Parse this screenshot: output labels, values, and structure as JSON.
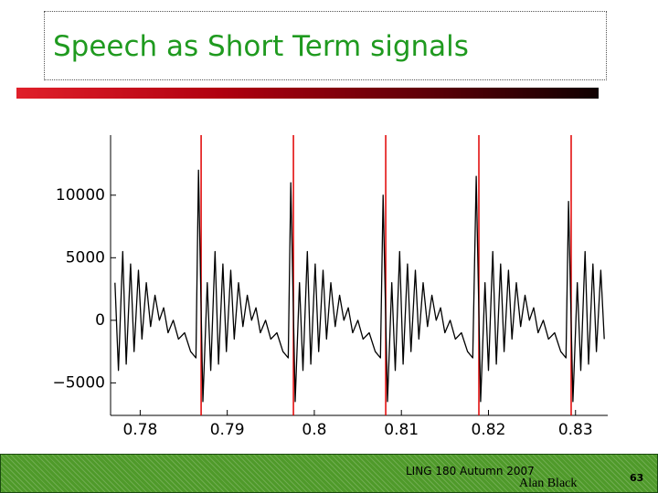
{
  "header": {
    "title": "Speech as Short Term signals"
  },
  "chart_data": {
    "type": "line",
    "xlim": [
      0.7766,
      0.8337
    ],
    "ylim": [
      -7600,
      14800
    ],
    "xticks": [
      0.78,
      0.79,
      0.8,
      0.81,
      0.82,
      0.83
    ],
    "yticks": [
      {
        "value": -5000,
        "label": "−5000"
      },
      0,
      5000,
      10000
    ],
    "grid": false,
    "pitch_marks": [
      0.787,
      0.7976,
      0.8082,
      0.8189,
      0.8295
    ],
    "pitch_mark_color": "#e00000",
    "x": [
      0.7771,
      0.7775,
      0.778,
      0.7784,
      0.7789,
      0.7793,
      0.7798,
      0.7802,
      0.7807,
      0.7812,
      0.7817,
      0.7822,
      0.7827,
      0.7832,
      0.7838,
      0.7844,
      0.7851,
      0.7858,
      0.7864,
      0.7867,
      0.7872,
      0.7877,
      0.7881,
      0.7886,
      0.789,
      0.7895,
      0.7899,
      0.7904,
      0.7908,
      0.7913,
      0.7918,
      0.7923,
      0.7928,
      0.7933,
      0.7938,
      0.7944,
      0.795,
      0.7957,
      0.7964,
      0.797,
      0.7973,
      0.7978,
      0.7983,
      0.7987,
      0.7992,
      0.7996,
      0.8001,
      0.8005,
      0.801,
      0.8014,
      0.8019,
      0.8024,
      0.8029,
      0.8034,
      0.8039,
      0.8044,
      0.805,
      0.8056,
      0.8063,
      0.807,
      0.8076,
      0.8079,
      0.8084,
      0.8089,
      0.8093,
      0.8098,
      0.8102,
      0.8107,
      0.8111,
      0.8116,
      0.812,
      0.8125,
      0.813,
      0.8135,
      0.814,
      0.8145,
      0.815,
      0.8156,
      0.8162,
      0.8169,
      0.8176,
      0.8182,
      0.8186,
      0.8191,
      0.8196,
      0.82,
      0.8205,
      0.8209,
      0.8214,
      0.8218,
      0.8223,
      0.8227,
      0.8232,
      0.8237,
      0.8242,
      0.8247,
      0.8252,
      0.8257,
      0.8263,
      0.8269,
      0.8276,
      0.8283,
      0.8289,
      0.8292,
      0.8297,
      0.8302,
      0.8306,
      0.8311,
      0.8315,
      0.832,
      0.8324,
      0.8329,
      0.8333
    ],
    "series": [
      {
        "color": "#000000",
        "values": [
          3000,
          -4000,
          5500,
          -3500,
          4500,
          -2500,
          4000,
          -1500,
          3000,
          -500,
          2000,
          0,
          1000,
          -1000,
          0,
          -1500,
          -1000,
          -2500,
          -3000,
          12000,
          -6500,
          3000,
          -4000,
          5500,
          -3500,
          4500,
          -2500,
          4000,
          -1500,
          3000,
          -500,
          2000,
          0,
          1000,
          -1000,
          0,
          -1500,
          -1000,
          -2500,
          -3000,
          11000,
          -6500,
          3000,
          -4000,
          5500,
          -3500,
          4500,
          -2500,
          4000,
          -1500,
          3000,
          -500,
          2000,
          0,
          1000,
          -1000,
          0,
          -1500,
          -1000,
          -2500,
          -3000,
          10000,
          -6500,
          3000,
          -4000,
          5500,
          -3500,
          4500,
          -2500,
          4000,
          -1500,
          3000,
          -500,
          2000,
          0,
          1000,
          -1000,
          0,
          -1500,
          -1000,
          -2500,
          -3000,
          11500,
          -6500,
          3000,
          -4000,
          5500,
          -3500,
          4500,
          -2500,
          4000,
          -1500,
          3000,
          -500,
          2000,
          0,
          1000,
          -1000,
          0,
          -1500,
          -1000,
          -2500,
          -3000,
          9500,
          -6500,
          3000,
          -4000,
          5500,
          -3500,
          4500,
          -2500,
          4000,
          -1500
        ]
      }
    ]
  },
  "footer": {
    "course": "LING 180 Autumn 2007",
    "author": "Alan Black",
    "page": "63"
  }
}
